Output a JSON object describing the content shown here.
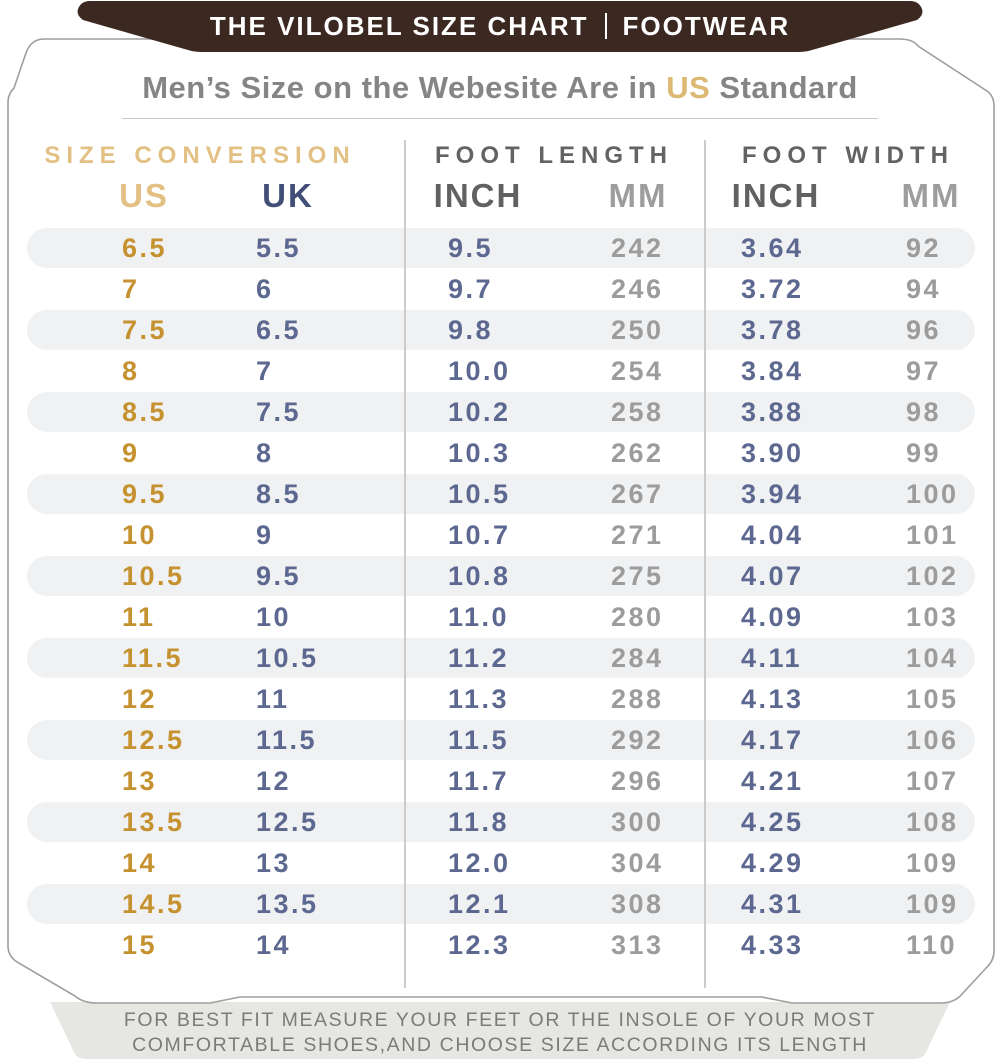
{
  "banner": {
    "brand": "THE VILOBEL SIZE CHART",
    "separator": "|",
    "category": "FOOTWEAR"
  },
  "title": {
    "prefix": "Men’s Size on the Webesite Are in ",
    "highlight": "US",
    "suffix": " Standard"
  },
  "footer": {
    "line1": "FOR BEST FIT MEASURE YOUR FEET OR THE INSOLE OF YOUR MOST",
    "line2": "COMFORTABLE SHOES,AND CHOOSE SIZE ACCORDING ITS LENGTH"
  },
  "colors": {
    "banner_brown": "#3b2921",
    "gold_header": "#e3c084",
    "gold_title": "#dcb873",
    "gold_value": "#c6922f",
    "slate": "#5d6890",
    "navy": "#414e78",
    "gray_value": "#9c9c9c",
    "stripe": "#eff1f3",
    "footer_bg": "#e6e6e3",
    "footer_fg": "#7b7b7b"
  },
  "chart_data": {
    "type": "table",
    "title": "Men's Size on the Webesite Are in US Standard",
    "groups": [
      {
        "label": "SIZE CONVERSION",
        "columns": [
          "US",
          "UK"
        ]
      },
      {
        "label": "FOOT LENGTH",
        "columns": [
          "INCH",
          "MM"
        ]
      },
      {
        "label": "FOOT WIDTH",
        "columns": [
          "INCH",
          "MM"
        ]
      }
    ],
    "rows": [
      [
        "6.5",
        "5.5",
        "9.5",
        "242",
        "3.64",
        "92"
      ],
      [
        "7",
        "6",
        "9.7",
        "246",
        "3.72",
        "94"
      ],
      [
        "7.5",
        "6.5",
        "9.8",
        "250",
        "3.78",
        "96"
      ],
      [
        "8",
        "7",
        "10.0",
        "254",
        "3.84",
        "97"
      ],
      [
        "8.5",
        "7.5",
        "10.2",
        "258",
        "3.88",
        "98"
      ],
      [
        "9",
        "8",
        "10.3",
        "262",
        "3.90",
        "99"
      ],
      [
        "9.5",
        "8.5",
        "10.5",
        "267",
        "3.94",
        "100"
      ],
      [
        "10",
        "9",
        "10.7",
        "271",
        "4.04",
        "101"
      ],
      [
        "10.5",
        "9.5",
        "10.8",
        "275",
        "4.07",
        "102"
      ],
      [
        "11",
        "10",
        "11.0",
        "280",
        "4.09",
        "103"
      ],
      [
        "11.5",
        "10.5",
        "11.2",
        "284",
        "4.11",
        "104"
      ],
      [
        "12",
        "11",
        "11.3",
        "288",
        "4.13",
        "105"
      ],
      [
        "12.5",
        "11.5",
        "11.5",
        "292",
        "4.17",
        "106"
      ],
      [
        "13",
        "12",
        "11.7",
        "296",
        "4.21",
        "107"
      ],
      [
        "13.5",
        "12.5",
        "11.8",
        "300",
        "4.25",
        "108"
      ],
      [
        "14",
        "13",
        "12.0",
        "304",
        "4.29",
        "109"
      ],
      [
        "14.5",
        "13.5",
        "12.1",
        "308",
        "4.31",
        "109"
      ],
      [
        "15",
        "14",
        "12.3",
        "313",
        "4.33",
        "110"
      ]
    ]
  }
}
